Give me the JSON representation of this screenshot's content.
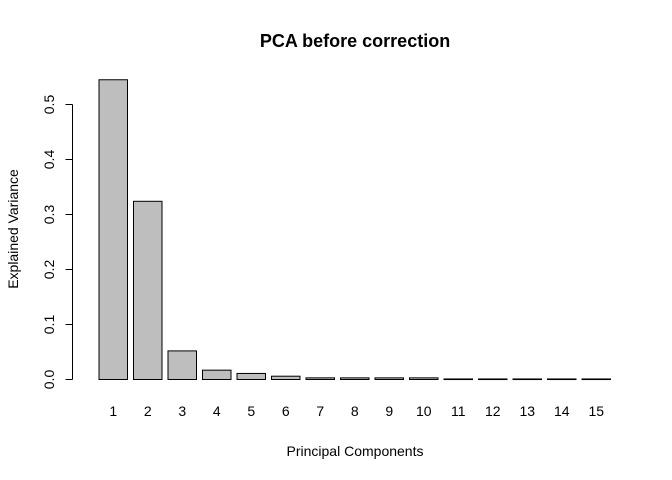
{
  "chart_data": {
    "type": "bar",
    "title": "PCA before correction",
    "xlabel": "Principal Components",
    "ylabel": "Explained Variance",
    "categories": [
      "1",
      "2",
      "3",
      "4",
      "5",
      "6",
      "7",
      "8",
      "9",
      "10",
      "11",
      "12",
      "13",
      "14",
      "15"
    ],
    "values": [
      0.545,
      0.324,
      0.052,
      0.017,
      0.011,
      0.006,
      0.003,
      0.003,
      0.003,
      0.003,
      0.001,
      0.001,
      0.001,
      0.001,
      0.001
    ],
    "ylim": [
      0,
      0.55
    ],
    "yticks": [
      "0.0",
      "0.1",
      "0.2",
      "0.3",
      "0.4",
      "0.5"
    ],
    "grid": false,
    "legend": "none",
    "colors": {
      "bar_fill": "#bebebe",
      "bar_stroke": "#000000"
    }
  }
}
